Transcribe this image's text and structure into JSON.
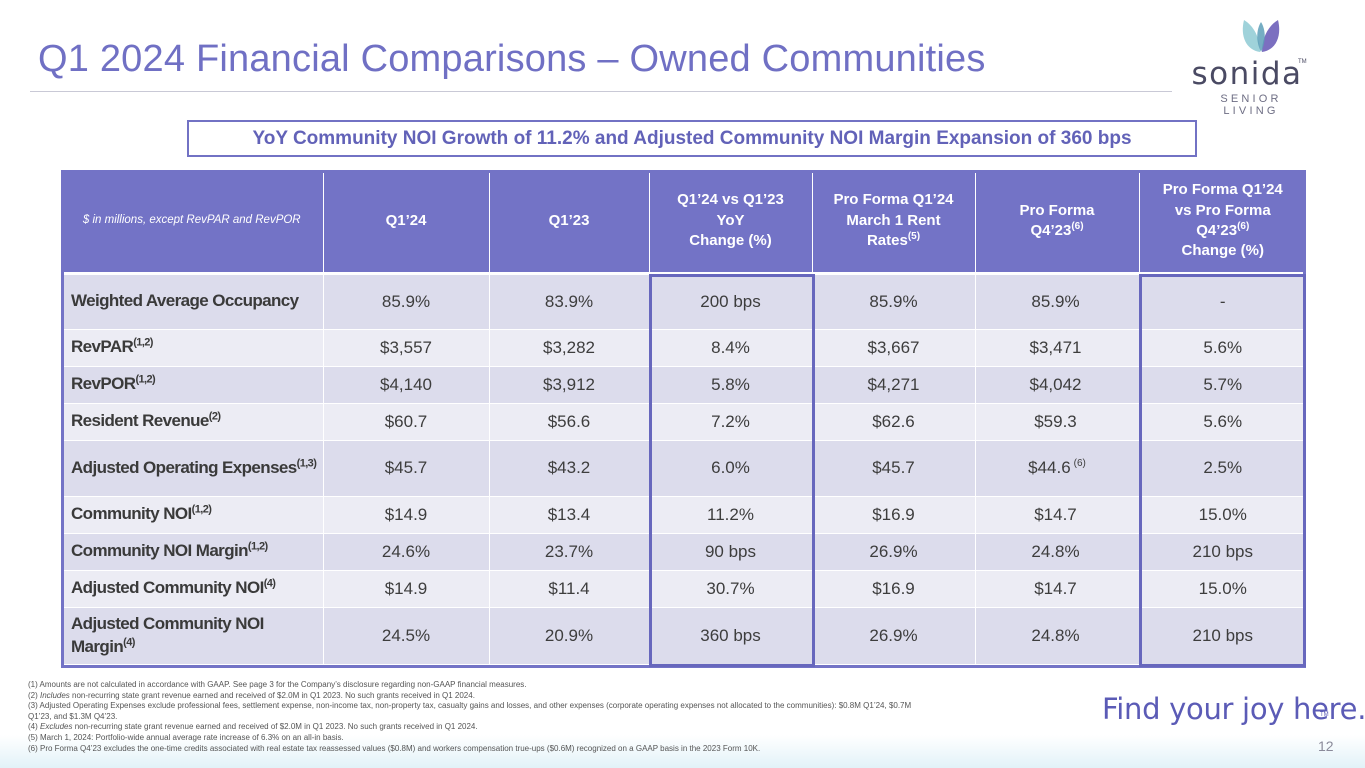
{
  "title": "Q1 2024 Financial Comparisons – Owned Communities",
  "logo": {
    "wordmark": "sonida",
    "tm": "TM",
    "subtitle": "SENIOR LIVING"
  },
  "headline": "YoY Community NOI Growth of 11.2% and Adjusted Community NOI Margin Expansion of 360 bps",
  "table": {
    "units_note": "$ in millions, except RevPAR and RevPOR",
    "headers": {
      "q1_24": "Q1’24",
      "q1_23": "Q1’23",
      "yoy_line1": "Q1’24 vs Q1’23",
      "yoy_line2": "YoY",
      "yoy_line3": "Change (%)",
      "pf_march_line1": "Pro Forma Q1’24",
      "pf_march_line2": "March 1 Rent",
      "pf_march_line3": "Rates",
      "pf_march_sup": "(5)",
      "pf_q4_line1": "Pro Forma",
      "pf_q4_line2": "Q4’23",
      "pf_q4_sup": "(6)",
      "pf_change_line1": "Pro Forma Q1’24",
      "pf_change_line2": "vs Pro Forma",
      "pf_change_line3": "Q4’23",
      "pf_change_sup": "(6)",
      "pf_change_line4": "Change (%)"
    },
    "rows": [
      {
        "label": "Weighted Average Occupancy",
        "sup": "",
        "q1_24": "85.9%",
        "q1_23": "83.9%",
        "yoy": "200 bps",
        "pf_march": "85.9%",
        "pf_q4": "85.9%",
        "pf_q4_note": "",
        "pf_change": "-"
      },
      {
        "label": "RevPAR",
        "sup": "(1,2)",
        "q1_24": "$3,557",
        "q1_23": "$3,282",
        "yoy": "8.4%",
        "pf_march": "$3,667",
        "pf_q4": "$3,471",
        "pf_q4_note": "",
        "pf_change": "5.6%"
      },
      {
        "label": "RevPOR",
        "sup": "(1,2)",
        "q1_24": "$4,140",
        "q1_23": "$3,912",
        "yoy": "5.8%",
        "pf_march": "$4,271",
        "pf_q4": "$4,042",
        "pf_q4_note": "",
        "pf_change": "5.7%"
      },
      {
        "label": "Resident Revenue",
        "sup": "(2)",
        "q1_24": "$60.7",
        "q1_23": "$56.6",
        "yoy": "7.2%",
        "pf_march": "$62.6",
        "pf_q4": "$59.3",
        "pf_q4_note": "",
        "pf_change": "5.6%"
      },
      {
        "label": "Adjusted Operating Expenses",
        "sup": "(1,3)",
        "q1_24": "$45.7",
        "q1_23": "$43.2",
        "yoy": "6.0%",
        "pf_march": "$45.7",
        "pf_q4": "$44.6",
        "pf_q4_note": "(6)",
        "pf_change": "2.5%"
      },
      {
        "label": "Community NOI",
        "sup": "(1,2)",
        "q1_24": "$14.9",
        "q1_23": "$13.4",
        "yoy": "11.2%",
        "pf_march": "$16.9",
        "pf_q4": "$14.7",
        "pf_q4_note": "",
        "pf_change": "15.0%"
      },
      {
        "label": "Community NOI Margin",
        "sup": "(1,2)",
        "q1_24": "24.6%",
        "q1_23": "23.7%",
        "yoy": "90 bps",
        "pf_march": "26.9%",
        "pf_q4": "24.8%",
        "pf_q4_note": "",
        "pf_change": "210 bps"
      },
      {
        "label": "Adjusted Community NOI",
        "sup": "(4)",
        "q1_24": "$14.9",
        "q1_23": "$11.4",
        "yoy": "30.7%",
        "pf_march": "$16.9",
        "pf_q4": "$14.7",
        "pf_q4_note": "",
        "pf_change": "15.0%"
      },
      {
        "label": "Adjusted Community NOI Margin",
        "sup": "(4)",
        "q1_24": "24.5%",
        "q1_23": "20.9%",
        "yoy": "360 bps",
        "pf_march": "26.9%",
        "pf_q4": "24.8%",
        "pf_q4_note": "",
        "pf_change": "210 bps"
      }
    ]
  },
  "footnotes": {
    "n1": "(1) Amounts are not calculated in accordance with GAAP. See page 3 for the Company’s disclosure regarding non-GAAP financial measures.",
    "n2_prefix": "(2) ",
    "n2_italic": "Includes",
    "n2_rest": " non-recurring state grant revenue earned and received of $2.0M in Q1 2023.  No such grants received in Q1 2024.",
    "n3": "(3) Adjusted Operating Expenses exclude professional fees, settlement expense, non-income tax, non-property tax, casualty gains and losses, and other expenses (corporate operating expenses not allocated to the communities): $0.8M Q1’24, $0.7M Q1’23, and $1.3M Q4’23.",
    "n4_prefix": "(4) ",
    "n4_italic": "Excludes",
    "n4_rest": " non-recurring state grant revenue earned and received of $2.0M in Q1 2023. No such grants received in Q1 2024.",
    "n5": "(5) March 1, 2024: Portfolio-wide annual average rate increase of 6.3% on an all-in basis.",
    "n6": "(6) Pro Forma Q4’23 excludes the one-time credits associated with real estate tax reassessed values ($0.8M) and workers compensation true-ups ($0.6M) recognized on a GAAP basis in the 2023 Form 10K."
  },
  "tagline": "Find your joy here.",
  "tagline_tm": "TM",
  "page_number": "12",
  "colors": {
    "accent": "#7373c6",
    "title": "#7070c4",
    "row_shade": "#dcdcec",
    "row_plain": "#ececf4"
  }
}
